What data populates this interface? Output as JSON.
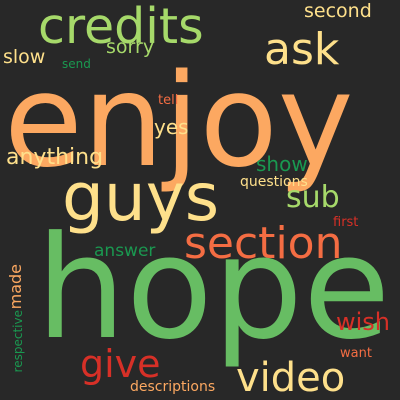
{
  "words": [
    {
      "text": "enjoy",
      "color": "#fca861"
    },
    {
      "text": "hope",
      "color": "#67bd63"
    },
    {
      "text": "guys",
      "color": "#fee08b"
    },
    {
      "text": "credits",
      "color": "#a6d96a"
    },
    {
      "text": "section",
      "color": "#f46d43"
    },
    {
      "text": "ask",
      "color": "#fee08b"
    },
    {
      "text": "video",
      "color": "#fee08b"
    },
    {
      "text": "give",
      "color": "#d73027"
    },
    {
      "text": "anything",
      "color": "#fee08b"
    },
    {
      "text": "sub",
      "color": "#a6d96a"
    },
    {
      "text": "yes",
      "color": "#fee08b"
    },
    {
      "text": "wish",
      "color": "#d73027"
    },
    {
      "text": "sorry",
      "color": "#a6d96a"
    },
    {
      "text": "show",
      "color": "#1a9850"
    },
    {
      "text": "second",
      "color": "#fee08b"
    },
    {
      "text": "slow",
      "color": "#fee08b"
    },
    {
      "text": "answer",
      "color": "#1a9850"
    },
    {
      "text": "made",
      "color": "#fca861"
    },
    {
      "text": "questions",
      "color": "#fee08b"
    },
    {
      "text": "descriptions",
      "color": "#fca861"
    },
    {
      "text": "tell",
      "color": "#f46d43"
    },
    {
      "text": "first",
      "color": "#d73027"
    },
    {
      "text": "want",
      "color": "#f46d43"
    },
    {
      "text": "send",
      "color": "#1a9850"
    },
    {
      "text": "respective",
      "color": "#1a9850"
    }
  ]
}
